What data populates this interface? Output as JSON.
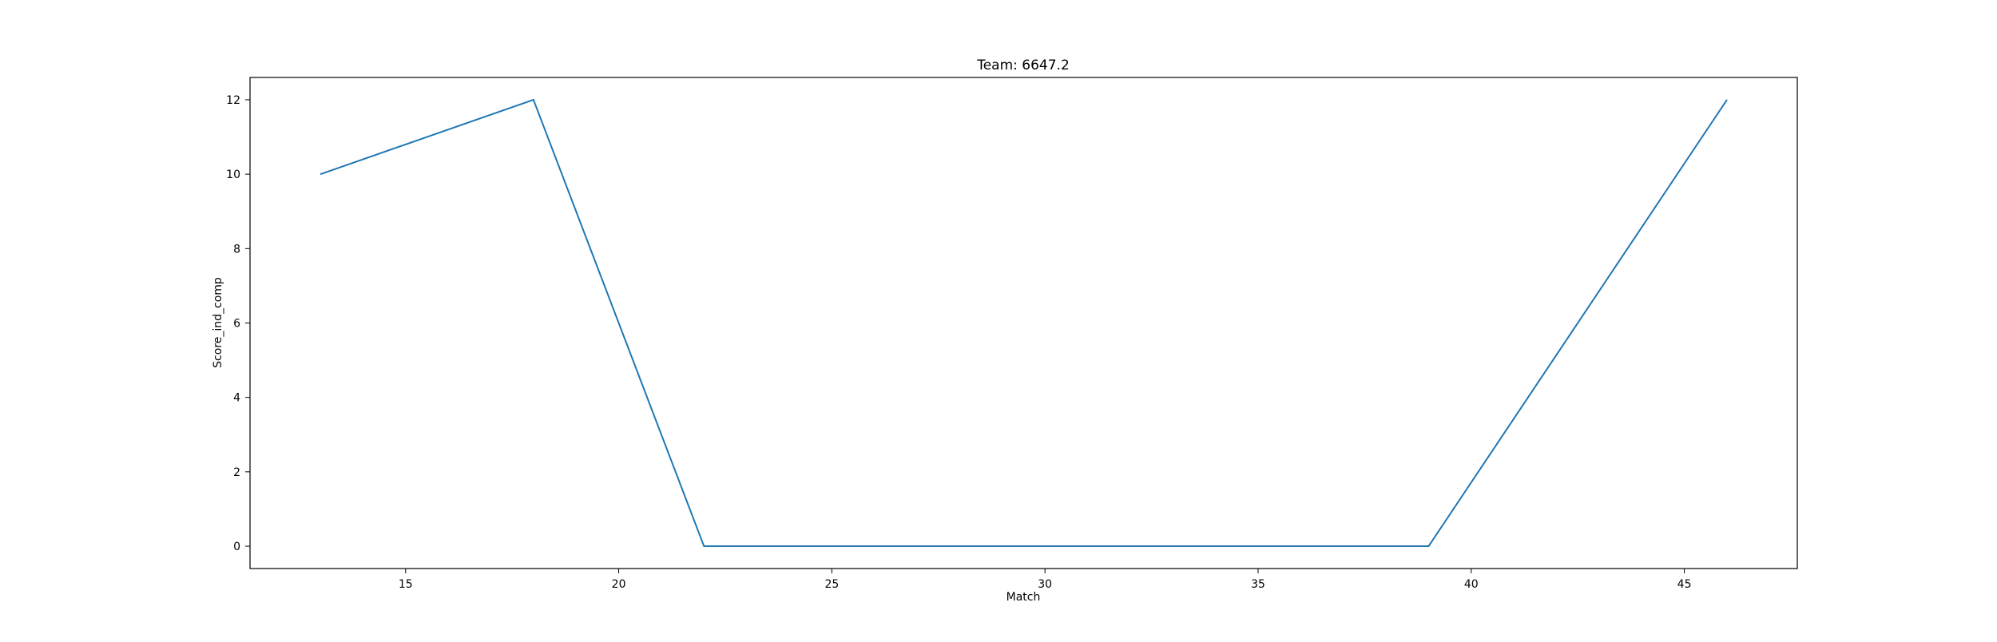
{
  "chart_data": {
    "type": "line",
    "title": "Team: 6647.2",
    "xlabel": "Match",
    "ylabel": "Score_ind_comp",
    "x": [
      13,
      18,
      22,
      39,
      46
    ],
    "series": [
      {
        "values": [
          10,
          12,
          0,
          0,
          12
        ],
        "color": "#1f77b4"
      }
    ],
    "xlim": [
      11.35,
      47.65
    ],
    "ylim": [
      -0.6,
      12.6
    ],
    "xticks": [
      15,
      20,
      25,
      30,
      35,
      40,
      45
    ],
    "yticks": [
      0,
      2,
      4,
      6,
      8,
      10,
      12
    ],
    "grid": false,
    "legend": "none"
  }
}
